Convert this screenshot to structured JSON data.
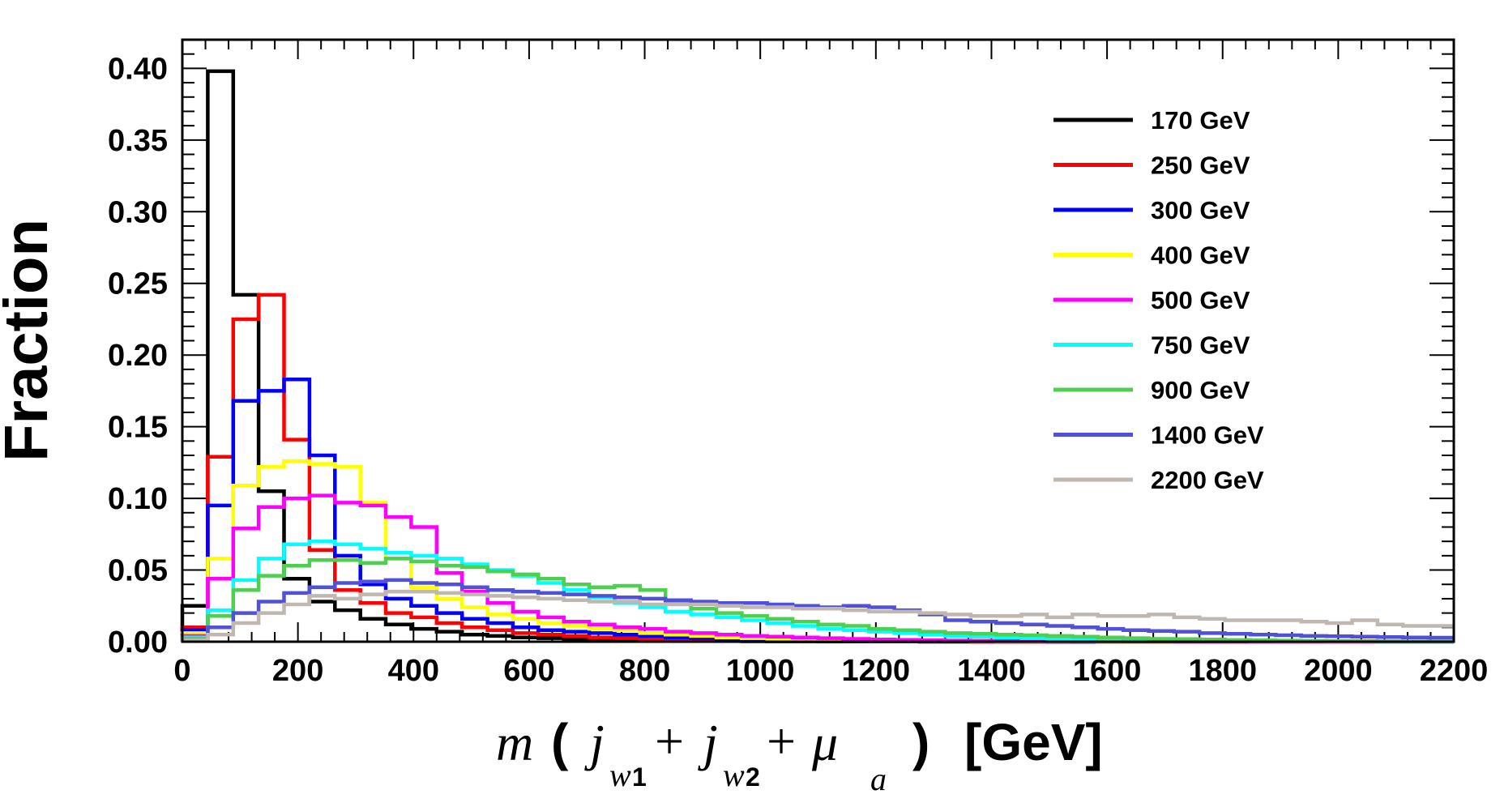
{
  "chart_data": {
    "type": "histogram",
    "title": "",
    "ylabel": "Fraction",
    "xlabel": {
      "m": "m",
      "open_paren": "(",
      "j1": "j",
      "sub1_letter": "w",
      "sub1_num": "1",
      "plus1": "+",
      "j2": "j",
      "sub2_letter": "w",
      "sub2_num": "2",
      "plus2": "+",
      "mu": "μ",
      "sub3": "a",
      "close_paren": ")",
      "unit": "[GeV]"
    },
    "xlim": [
      0,
      2200
    ],
    "ylim": [
      0,
      0.42
    ],
    "bin_edges": [
      0,
      44,
      88,
      132,
      176,
      220,
      264,
      308,
      352,
      396,
      440,
      484,
      528,
      572,
      616,
      660,
      704,
      748,
      792,
      836,
      880,
      924,
      968,
      1012,
      1056,
      1100,
      1144,
      1188,
      1232,
      1276,
      1320,
      1364,
      1408,
      1452,
      1496,
      1540,
      1584,
      1628,
      1672,
      1716,
      1760,
      1804,
      1848,
      1892,
      1936,
      1980,
      2024,
      2068,
      2112,
      2156,
      2200
    ],
    "x_ticks": [
      0,
      200,
      400,
      600,
      800,
      1000,
      1200,
      1400,
      1600,
      1800,
      2000,
      2200
    ],
    "x_tick_labels": [
      "0",
      "200",
      "400",
      "600",
      "800",
      "1000",
      "1200",
      "1400",
      "1600",
      "1800",
      "2000",
      "2200"
    ],
    "y_ticks": [
      0,
      0.05,
      0.1,
      0.15,
      0.2,
      0.25,
      0.3,
      0.35,
      0.4
    ],
    "y_tick_labels": [
      "0.00",
      "0.05",
      "0.10",
      "0.15",
      "0.20",
      "0.25",
      "0.30",
      "0.35",
      "0.40"
    ],
    "legend_position": "top-right",
    "series": [
      {
        "name": "170 GeV",
        "color": "#000000",
        "values": [
          0.025,
          0.398,
          0.242,
          0.105,
          0.044,
          0.028,
          0.022,
          0.016,
          0.012,
          0.009,
          0.007,
          0.005,
          0.004,
          0.003,
          0.0025,
          0.002,
          0.0015,
          0.001,
          0.0008,
          0.0006,
          0.0005,
          0.0004,
          0.0003,
          0.0002,
          0.0002,
          0.0001,
          0.0001,
          0.0001,
          0.0001,
          0,
          0,
          0,
          0,
          0,
          0,
          0,
          0,
          0,
          0,
          0,
          0,
          0,
          0,
          0,
          0,
          0,
          0,
          0,
          0,
          0
        ]
      },
      {
        "name": "250 GeV",
        "color": "#ff0000",
        "values": [
          0.01,
          0.129,
          0.225,
          0.242,
          0.141,
          0.064,
          0.036,
          0.027,
          0.02,
          0.017,
          0.013,
          0.01,
          0.008,
          0.006,
          0.005,
          0.004,
          0.003,
          0.0025,
          0.002,
          0.0015,
          0.0012,
          0.001,
          0.0008,
          0.0006,
          0.0005,
          0.0004,
          0.0003,
          0.0002,
          0.0002,
          0.0001,
          0.0001,
          0,
          0,
          0,
          0,
          0,
          0,
          0,
          0,
          0,
          0,
          0,
          0,
          0,
          0,
          0,
          0,
          0,
          0,
          0
        ]
      },
      {
        "name": "300 GeV",
        "color": "#0000ff",
        "values": [
          0.008,
          0.095,
          0.168,
          0.175,
          0.183,
          0.13,
          0.06,
          0.04,
          0.03,
          0.025,
          0.02,
          0.016,
          0.013,
          0.01,
          0.008,
          0.007,
          0.006,
          0.005,
          0.004,
          0.003,
          0.0025,
          0.002,
          0.0015,
          0.0012,
          0.001,
          0.0008,
          0.0006,
          0.0005,
          0.0004,
          0.0003,
          0.0002,
          0.0002,
          0.0001,
          0.0001,
          0,
          0,
          0,
          0,
          0,
          0,
          0,
          0,
          0,
          0,
          0,
          0,
          0,
          0,
          0,
          0
        ]
      },
      {
        "name": "400 GeV",
        "color": "#ffff00",
        "values": [
          0.006,
          0.058,
          0.109,
          0.122,
          0.126,
          0.124,
          0.122,
          0.097,
          0.058,
          0.038,
          0.03,
          0.024,
          0.019,
          0.016,
          0.013,
          0.011,
          0.009,
          0.008,
          0.006,
          0.005,
          0.004,
          0.003,
          0.0025,
          0.002,
          0.0015,
          0.0012,
          0.001,
          0.0008,
          0.0006,
          0.0005,
          0.0004,
          0.0003,
          0.0002,
          0.0002,
          0.0001,
          0.0001,
          0,
          0,
          0,
          0,
          0,
          0,
          0,
          0,
          0,
          0,
          0,
          0,
          0,
          0
        ]
      },
      {
        "name": "500 GeV",
        "color": "#ff00ff",
        "values": [
          0.004,
          0.044,
          0.079,
          0.094,
          0.1,
          0.102,
          0.097,
          0.095,
          0.087,
          0.08,
          0.048,
          0.035,
          0.027,
          0.021,
          0.017,
          0.014,
          0.012,
          0.01,
          0.009,
          0.007,
          0.006,
          0.005,
          0.004,
          0.0035,
          0.003,
          0.0025,
          0.002,
          0.0016,
          0.0013,
          0.001,
          0.0008,
          0.0006,
          0.0005,
          0.0004,
          0.0003,
          0.0002,
          0.0002,
          0.0001,
          0.0001,
          0,
          0,
          0,
          0,
          0,
          0,
          0,
          0,
          0,
          0,
          0
        ]
      },
      {
        "name": "750 GeV",
        "color": "#00ffff",
        "values": [
          0.003,
          0.022,
          0.043,
          0.058,
          0.068,
          0.07,
          0.068,
          0.065,
          0.062,
          0.06,
          0.058,
          0.054,
          0.05,
          0.046,
          0.041,
          0.036,
          0.031,
          0.027,
          0.024,
          0.021,
          0.019,
          0.017,
          0.015,
          0.013,
          0.011,
          0.009,
          0.008,
          0.007,
          0.006,
          0.005,
          0.004,
          0.0035,
          0.003,
          0.0025,
          0.002,
          0.0015,
          0.0012,
          0.001,
          0.0008,
          0.0006,
          0.0005,
          0.0004,
          0.0003,
          0.0002,
          0.0002,
          0.0001,
          0.0001,
          0,
          0,
          0
        ]
      },
      {
        "name": "900 GeV",
        "color": "#4fcf4f",
        "values": [
          0.002,
          0.018,
          0.036,
          0.046,
          0.053,
          0.057,
          0.057,
          0.055,
          0.058,
          0.056,
          0.053,
          0.052,
          0.049,
          0.047,
          0.044,
          0.04,
          0.038,
          0.039,
          0.036,
          0.027,
          0.023,
          0.02,
          0.018,
          0.016,
          0.014,
          0.012,
          0.011,
          0.009,
          0.008,
          0.007,
          0.006,
          0.0055,
          0.005,
          0.0045,
          0.004,
          0.0035,
          0.003,
          0.0025,
          0.002,
          0.0018,
          0.0015,
          0.0012,
          0.001,
          0.0008,
          0.0006,
          0.0005,
          0.0004,
          0.0003,
          0.0002,
          0.0002
        ]
      },
      {
        "name": "1400 GeV",
        "color": "#5050d8",
        "values": [
          0.001,
          0.01,
          0.02,
          0.028,
          0.034,
          0.038,
          0.041,
          0.042,
          0.043,
          0.041,
          0.04,
          0.038,
          0.036,
          0.035,
          0.034,
          0.033,
          0.032,
          0.031,
          0.03,
          0.029,
          0.028,
          0.027,
          0.027,
          0.026,
          0.025,
          0.024,
          0.025,
          0.024,
          0.022,
          0.019,
          0.015,
          0.014,
          0.013,
          0.012,
          0.011,
          0.01,
          0.009,
          0.008,
          0.0075,
          0.007,
          0.006,
          0.0055,
          0.005,
          0.0045,
          0.004,
          0.0038,
          0.0035,
          0.0032,
          0.003,
          0.0028
        ]
      },
      {
        "name": "2200 GeV",
        "color": "#c0b8b0",
        "values": [
          0.001,
          0.005,
          0.013,
          0.02,
          0.026,
          0.032,
          0.03,
          0.033,
          0.035,
          0.035,
          0.034,
          0.033,
          0.032,
          0.031,
          0.03,
          0.029,
          0.028,
          0.028,
          0.026,
          0.026,
          0.026,
          0.025,
          0.024,
          0.024,
          0.023,
          0.023,
          0.022,
          0.021,
          0.021,
          0.02,
          0.019,
          0.018,
          0.018,
          0.019,
          0.017,
          0.019,
          0.018,
          0.018,
          0.019,
          0.017,
          0.016,
          0.015,
          0.015,
          0.015,
          0.014,
          0.013,
          0.015,
          0.012,
          0.011,
          0.011
        ]
      }
    ]
  }
}
